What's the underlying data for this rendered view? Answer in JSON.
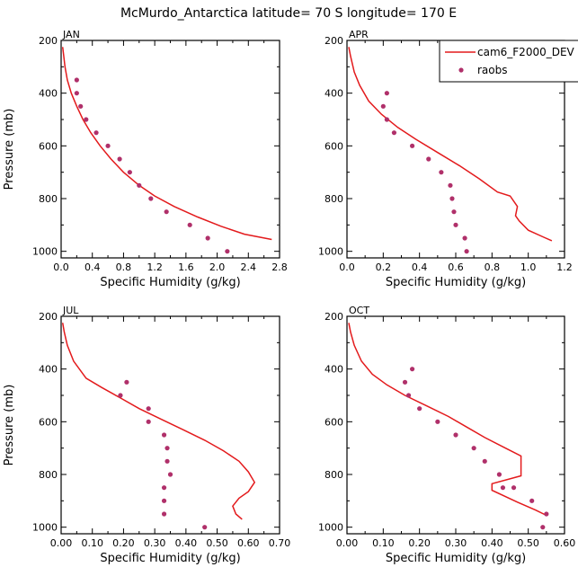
{
  "figure": {
    "title": "McMurdo_Antarctica  latitude= 70 S longitude= 170 E"
  },
  "colors": {
    "model": "#e31a1c",
    "obs": "#b0306a"
  },
  "legend": {
    "placement": "top-right of APR panel",
    "model_label": "cam6_F2000_DEV",
    "obs_label": "raobs"
  },
  "chart_data": [
    {
      "type": "line",
      "panel": "JAN",
      "xlabel": "Specific Humidity (g/kg)",
      "ylabel": "Pressure (mb)",
      "xlim": [
        0,
        2.8
      ],
      "ylim": [
        200,
        1025
      ],
      "y_inverted": true,
      "xticks": [
        "0.0",
        "0.4",
        "0.8",
        "1.2",
        "1.6",
        "2.0",
        "2.4",
        "2.8"
      ],
      "yticks": [
        "200",
        "400",
        "600",
        "800",
        "1000"
      ],
      "series": [
        {
          "name": "cam6_F2000_DEV",
          "style": "line",
          "x": [
            0.02,
            0.03,
            0.05,
            0.08,
            0.13,
            0.2,
            0.28,
            0.38,
            0.5,
            0.64,
            0.8,
            1.0,
            1.2,
            1.45,
            1.75,
            2.05,
            2.35,
            2.7
          ],
          "y": [
            225,
            250,
            300,
            350,
            400,
            450,
            500,
            550,
            600,
            650,
            700,
            750,
            790,
            830,
            870,
            905,
            935,
            955
          ]
        },
        {
          "name": "raobs",
          "style": "points",
          "x": [
            0.2,
            0.2,
            0.25,
            0.32,
            0.45,
            0.6,
            0.75,
            0.88,
            1.0,
            1.15,
            1.35,
            1.65,
            1.88,
            2.13
          ],
          "y": [
            350,
            400,
            450,
            500,
            550,
            600,
            650,
            700,
            750,
            800,
            850,
            900,
            950,
            1000
          ]
        }
      ]
    },
    {
      "type": "line",
      "panel": "APR",
      "xlabel": "Specific Humidity (g/kg)",
      "ylabel": "",
      "xlim": [
        0,
        1.2
      ],
      "ylim": [
        200,
        1025
      ],
      "y_inverted": true,
      "xticks": [
        "0.0",
        "0.2",
        "0.4",
        "0.6",
        "0.8",
        "1.0",
        "1.2"
      ],
      "yticks": [
        "200",
        "400",
        "600",
        "800",
        "1000"
      ],
      "series": [
        {
          "name": "cam6_F2000_DEV",
          "style": "line",
          "x": [
            0.01,
            0.02,
            0.04,
            0.07,
            0.12,
            0.19,
            0.28,
            0.38,
            0.5,
            0.62,
            0.73,
            0.83,
            0.9,
            0.94,
            0.93,
            0.95,
            1.0,
            1.08,
            1.13
          ],
          "y": [
            225,
            260,
            320,
            370,
            430,
            480,
            530,
            575,
            625,
            675,
            725,
            775,
            790,
            830,
            865,
            885,
            920,
            945,
            960
          ]
        },
        {
          "name": "raobs",
          "style": "points",
          "x": [
            0.22,
            0.2,
            0.22,
            0.26,
            0.36,
            0.45,
            0.52,
            0.57,
            0.58,
            0.59,
            0.6,
            0.65,
            0.66
          ],
          "y": [
            400,
            450,
            500,
            550,
            600,
            650,
            700,
            750,
            800,
            850,
            900,
            950,
            1000
          ]
        }
      ]
    },
    {
      "type": "line",
      "panel": "JUL",
      "xlabel": "Specific Humidity (g/kg)",
      "ylabel": "Pressure (mb)",
      "xlim": [
        0,
        0.7
      ],
      "ylim": [
        200,
        1025
      ],
      "y_inverted": true,
      "xticks": [
        "0.00",
        "0.10",
        "0.20",
        "0.30",
        "0.40",
        "0.50",
        "0.60",
        "0.70"
      ],
      "yticks": [
        "200",
        "400",
        "600",
        "800",
        "1000"
      ],
      "series": [
        {
          "name": "cam6_F2000_DEV",
          "style": "line",
          "x": [
            0.005,
            0.01,
            0.02,
            0.04,
            0.08,
            0.13,
            0.19,
            0.25,
            0.32,
            0.39,
            0.46,
            0.52,
            0.57,
            0.6,
            0.62,
            0.6,
            0.57,
            0.55,
            0.56,
            0.58
          ],
          "y": [
            225,
            260,
            310,
            370,
            435,
            470,
            510,
            550,
            590,
            630,
            670,
            710,
            750,
            790,
            830,
            865,
            890,
            920,
            950,
            970
          ]
        },
        {
          "name": "raobs",
          "style": "points",
          "x": [
            0.21,
            0.19,
            0.28,
            0.28,
            0.33,
            0.34,
            0.34,
            0.35,
            0.33,
            0.33,
            0.33,
            0.46
          ],
          "y": [
            450,
            500,
            550,
            600,
            650,
            700,
            750,
            800,
            850,
            900,
            950,
            1000
          ]
        }
      ]
    },
    {
      "type": "line",
      "panel": "OCT",
      "xlabel": "Specific Humidity (g/kg)",
      "ylabel": "",
      "xlim": [
        0,
        0.6
      ],
      "ylim": [
        200,
        1025
      ],
      "y_inverted": true,
      "xticks": [
        "0.00",
        "0.10",
        "0.20",
        "0.30",
        "0.40",
        "0.50",
        "0.60"
      ],
      "yticks": [
        "200",
        "400",
        "600",
        "800",
        "1000"
      ],
      "series": [
        {
          "name": "cam6_F2000_DEV",
          "style": "line",
          "x": [
            0.005,
            0.01,
            0.02,
            0.04,
            0.07,
            0.11,
            0.16,
            0.22,
            0.28,
            0.33,
            0.38,
            0.43,
            0.48,
            0.48,
            0.4,
            0.4,
            0.47,
            0.52,
            0.55
          ],
          "y": [
            225,
            260,
            310,
            370,
            420,
            460,
            500,
            540,
            580,
            620,
            660,
            695,
            730,
            805,
            835,
            860,
            905,
            935,
            955
          ]
        },
        {
          "name": "raobs",
          "style": "points",
          "x": [
            0.18,
            0.16,
            0.17,
            0.2,
            0.25,
            0.3,
            0.35,
            0.38,
            0.42,
            0.43,
            0.46,
            0.51,
            0.55,
            0.54
          ],
          "y": [
            400,
            450,
            500,
            550,
            600,
            650,
            700,
            750,
            800,
            850,
            850,
            900,
            950,
            1000
          ]
        }
      ]
    }
  ]
}
